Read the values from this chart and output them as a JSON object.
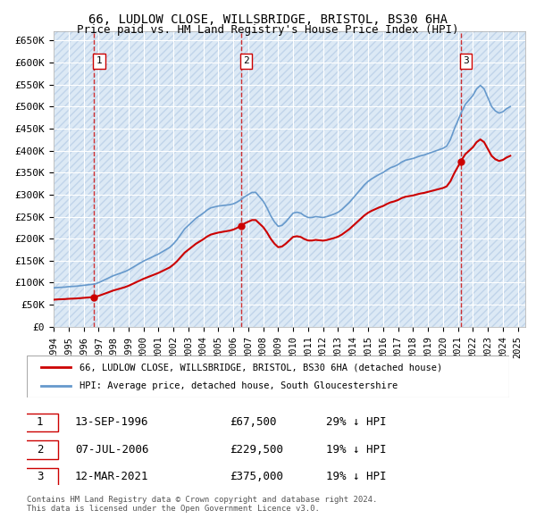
{
  "title1": "66, LUDLOW CLOSE, WILLSBRIDGE, BRISTOL, BS30 6HA",
  "title2": "Price paid vs. HM Land Registry's House Price Index (HPI)",
  "ylabel_ticks": [
    "£0",
    "£50K",
    "£100K",
    "£150K",
    "£200K",
    "£250K",
    "£300K",
    "£350K",
    "£400K",
    "£450K",
    "£500K",
    "£550K",
    "£600K",
    "£650K"
  ],
  "ytick_values": [
    0,
    50000,
    100000,
    150000,
    200000,
    250000,
    300000,
    350000,
    400000,
    450000,
    500000,
    550000,
    600000,
    650000
  ],
  "ylim": [
    0,
    670000
  ],
  "xlim_start": 1994.0,
  "xlim_end": 2025.5,
  "background_color": "#dce9f5",
  "hatch_color": "#c0d4ea",
  "grid_color": "#ffffff",
  "sale_dates": [
    1996.7,
    2006.52,
    2021.19
  ],
  "sale_prices": [
    67500,
    229500,
    375000
  ],
  "sale_labels": [
    "1",
    "2",
    "3"
  ],
  "hpi_line_color": "#6699cc",
  "sale_line_color": "#cc0000",
  "sale_dot_color": "#cc0000",
  "vline_color": "#cc0000",
  "legend_label1": "66, LUDLOW CLOSE, WILLSBRIDGE, BRISTOL, BS30 6HA (detached house)",
  "legend_label2": "HPI: Average price, detached house, South Gloucestershire",
  "table_rows": [
    [
      "1",
      "13-SEP-1996",
      "£67,500",
      "29% ↓ HPI"
    ],
    [
      "2",
      "07-JUL-2006",
      "£229,500",
      "19% ↓ HPI"
    ],
    [
      "3",
      "12-MAR-2021",
      "£375,000",
      "19% ↓ HPI"
    ]
  ],
  "footnote": "Contains HM Land Registry data © Crown copyright and database right 2024.\nThis data is licensed under the Open Government Licence v3.0.",
  "hpi_data_x": [
    1994.0,
    1994.25,
    1994.5,
    1994.75,
    1995.0,
    1995.25,
    1995.5,
    1995.75,
    1996.0,
    1996.25,
    1996.5,
    1996.75,
    1997.0,
    1997.25,
    1997.5,
    1997.75,
    1998.0,
    1998.25,
    1998.5,
    1998.75,
    1999.0,
    1999.25,
    1999.5,
    1999.75,
    2000.0,
    2000.25,
    2000.5,
    2000.75,
    2001.0,
    2001.25,
    2001.5,
    2001.75,
    2002.0,
    2002.25,
    2002.5,
    2002.75,
    2003.0,
    2003.25,
    2003.5,
    2003.75,
    2004.0,
    2004.25,
    2004.5,
    2004.75,
    2005.0,
    2005.25,
    2005.5,
    2005.75,
    2006.0,
    2006.25,
    2006.5,
    2006.75,
    2007.0,
    2007.25,
    2007.5,
    2007.75,
    2008.0,
    2008.25,
    2008.5,
    2008.75,
    2009.0,
    2009.25,
    2009.5,
    2009.75,
    2010.0,
    2010.25,
    2010.5,
    2010.75,
    2011.0,
    2011.25,
    2011.5,
    2011.75,
    2012.0,
    2012.25,
    2012.5,
    2012.75,
    2013.0,
    2013.25,
    2013.5,
    2013.75,
    2014.0,
    2014.25,
    2014.5,
    2014.75,
    2015.0,
    2015.25,
    2015.5,
    2015.75,
    2016.0,
    2016.25,
    2016.5,
    2016.75,
    2017.0,
    2017.25,
    2017.5,
    2017.75,
    2018.0,
    2018.25,
    2018.5,
    2018.75,
    2019.0,
    2019.25,
    2019.5,
    2019.75,
    2020.0,
    2020.25,
    2020.5,
    2020.75,
    2021.0,
    2021.25,
    2021.5,
    2021.75,
    2022.0,
    2022.25,
    2022.5,
    2022.75,
    2023.0,
    2023.25,
    2023.5,
    2023.75,
    2024.0,
    2024.25,
    2024.5
  ],
  "hpi_data_y": [
    88000,
    89000,
    89500,
    90000,
    91000,
    91500,
    92000,
    93000,
    94000,
    95000,
    96000,
    97000,
    100000,
    104000,
    108000,
    112000,
    116000,
    119000,
    122000,
    125000,
    129000,
    134000,
    139000,
    144000,
    149000,
    153000,
    157000,
    161000,
    165000,
    170000,
    175000,
    180000,
    188000,
    198000,
    210000,
    222000,
    230000,
    238000,
    246000,
    252000,
    258000,
    265000,
    270000,
    272000,
    274000,
    275000,
    276000,
    277000,
    279000,
    283000,
    288000,
    295000,
    300000,
    305000,
    305000,
    295000,
    285000,
    270000,
    252000,
    238000,
    228000,
    230000,
    238000,
    248000,
    258000,
    260000,
    258000,
    252000,
    248000,
    248000,
    250000,
    249000,
    248000,
    250000,
    253000,
    256000,
    260000,
    266000,
    274000,
    282000,
    292000,
    302000,
    312000,
    322000,
    330000,
    336000,
    341000,
    346000,
    350000,
    356000,
    361000,
    364000,
    368000,
    374000,
    378000,
    380000,
    382000,
    385000,
    388000,
    390000,
    393000,
    396000,
    399000,
    402000,
    405000,
    410000,
    425000,
    448000,
    468000,
    488000,
    505000,
    515000,
    525000,
    540000,
    548000,
    540000,
    520000,
    500000,
    490000,
    485000,
    488000,
    495000,
    500000
  ]
}
